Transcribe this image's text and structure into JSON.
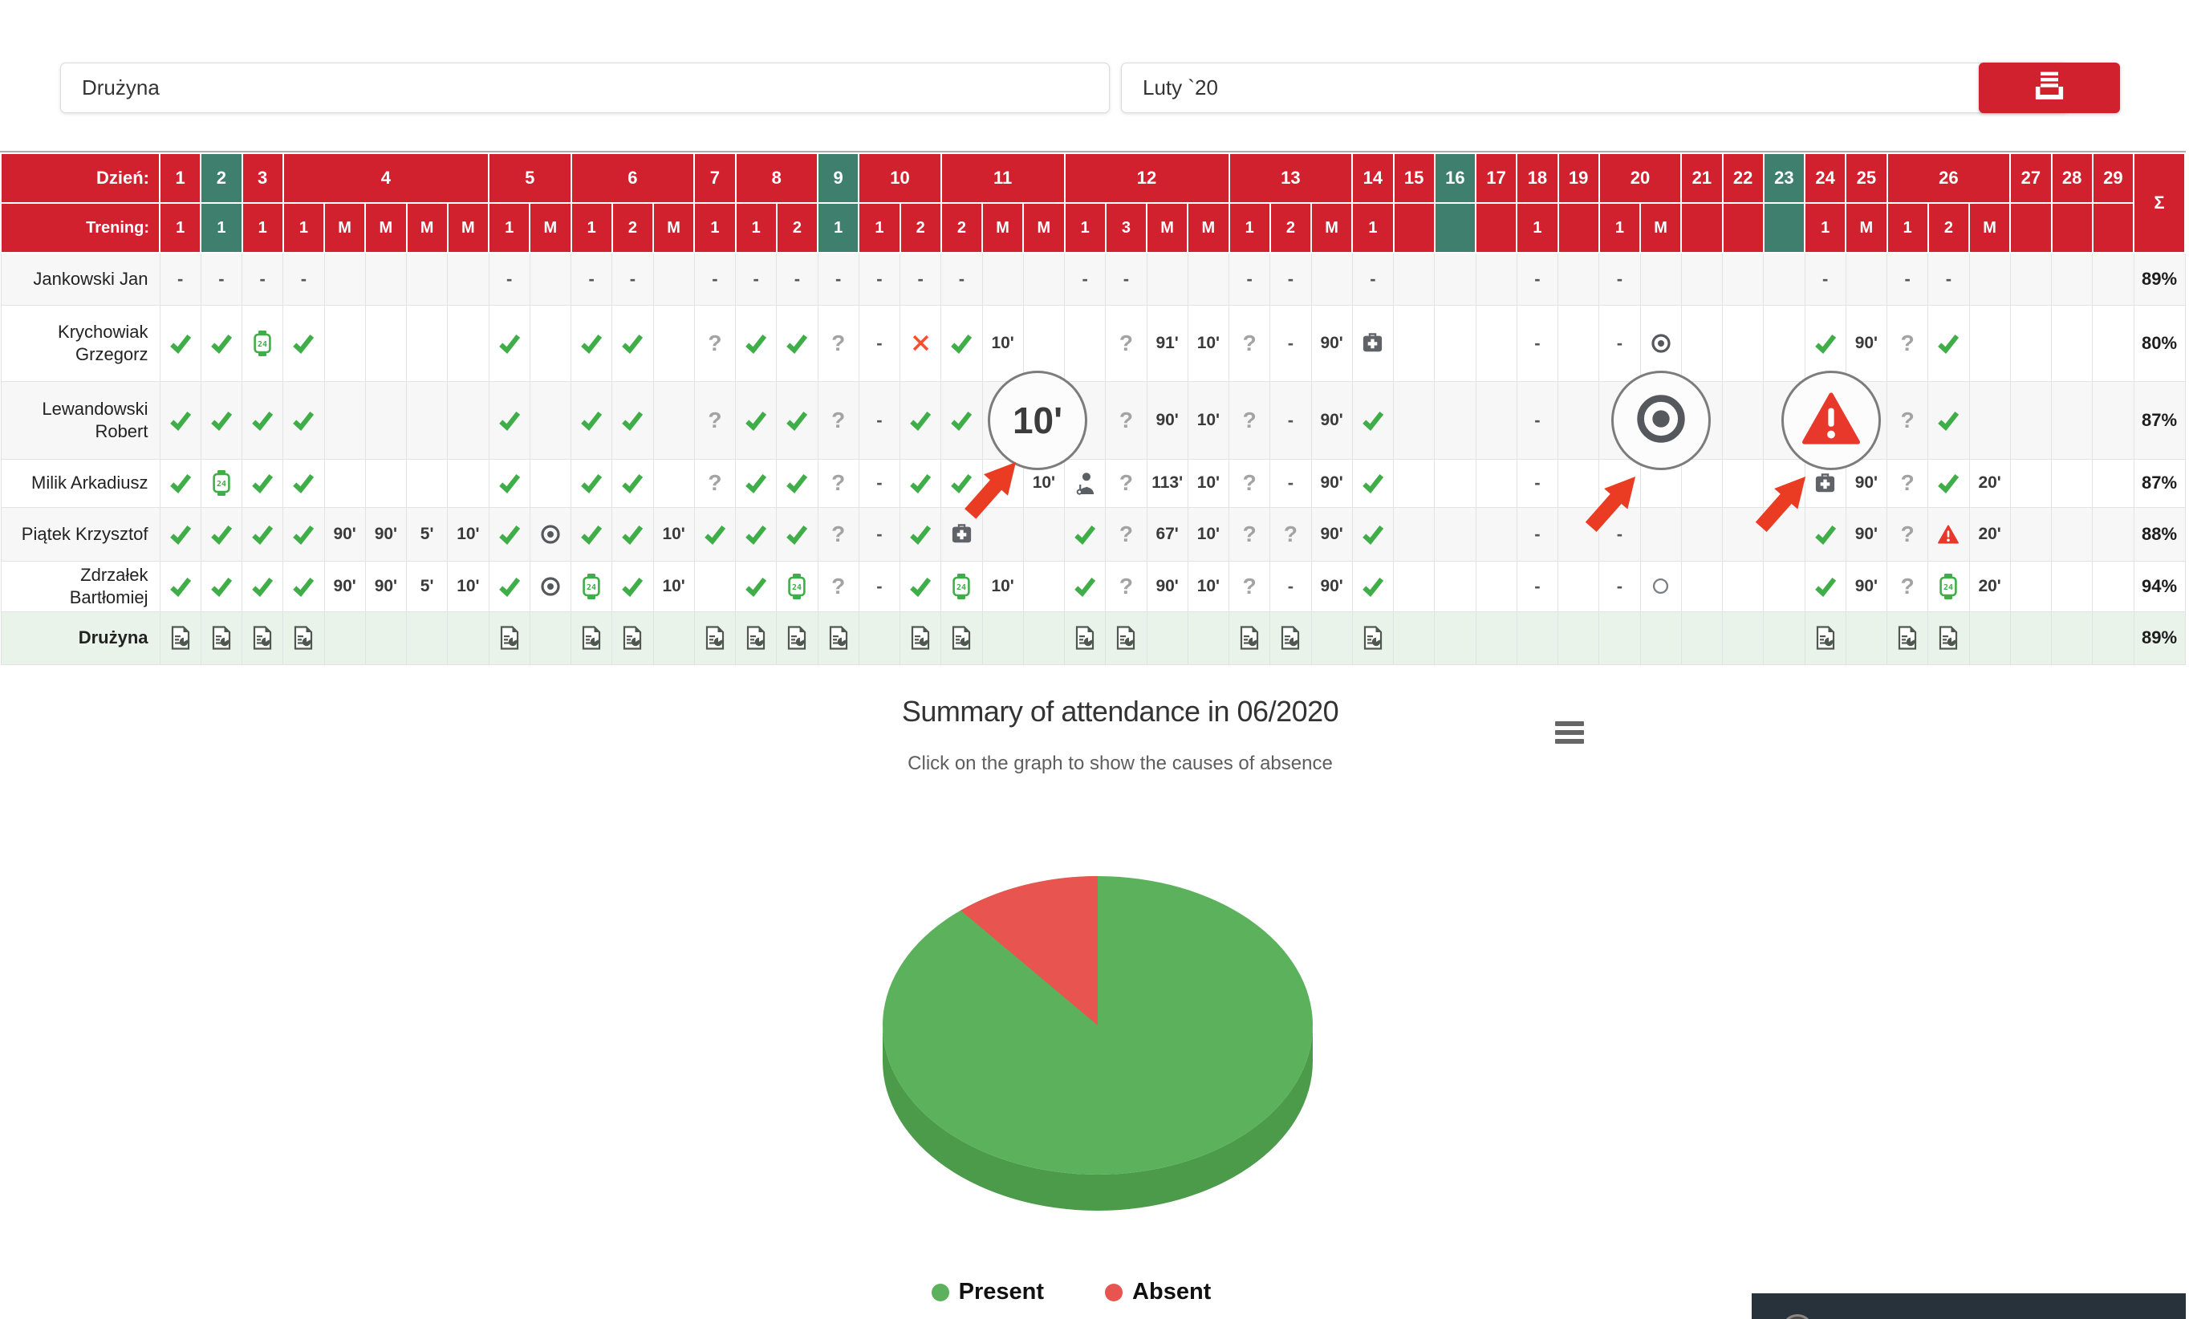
{
  "toolbar": {
    "team_value": "Drużyna",
    "month_value": "Luty `20",
    "print_icon": "printer-icon"
  },
  "table": {
    "day_label": "Dzień:",
    "trening_label": "Trening:",
    "sum_label": "Σ",
    "days": [
      {
        "label": "1",
        "teal": false,
        "trenings": [
          "1"
        ]
      },
      {
        "label": "2",
        "teal": true,
        "trenings": [
          "1"
        ]
      },
      {
        "label": "3",
        "teal": false,
        "trenings": [
          "1"
        ]
      },
      {
        "label": "4",
        "teal": false,
        "trenings": [
          "1",
          "M",
          "M",
          "M",
          "M"
        ]
      },
      {
        "label": "5",
        "teal": false,
        "trenings": [
          "1",
          "M"
        ]
      },
      {
        "label": "6",
        "teal": false,
        "trenings": [
          "1",
          "2",
          "M"
        ]
      },
      {
        "label": "7",
        "teal": false,
        "trenings": [
          "1"
        ]
      },
      {
        "label": "8",
        "teal": false,
        "trenings": [
          "1",
          "2"
        ]
      },
      {
        "label": "9",
        "teal": true,
        "trenings": [
          "1"
        ]
      },
      {
        "label": "10",
        "teal": false,
        "trenings": [
          "1",
          "2"
        ]
      },
      {
        "label": "11",
        "teal": false,
        "trenings": [
          "2",
          "M",
          "M"
        ]
      },
      {
        "label": "12",
        "teal": false,
        "trenings": [
          "1",
          "3",
          "M",
          "M"
        ]
      },
      {
        "label": "13",
        "teal": false,
        "trenings": [
          "1",
          "2",
          "M"
        ]
      },
      {
        "label": "14",
        "teal": false,
        "trenings": [
          "1"
        ]
      },
      {
        "label": "15",
        "teal": false,
        "trenings": [
          ""
        ]
      },
      {
        "label": "16",
        "teal": true,
        "trenings": [
          ""
        ]
      },
      {
        "label": "17",
        "teal": false,
        "trenings": [
          ""
        ]
      },
      {
        "label": "18",
        "teal": false,
        "trenings": [
          "1"
        ]
      },
      {
        "label": "19",
        "teal": false,
        "trenings": [
          ""
        ]
      },
      {
        "label": "20",
        "teal": false,
        "trenings": [
          "1",
          "M"
        ]
      },
      {
        "label": "21",
        "teal": false,
        "trenings": [
          ""
        ]
      },
      {
        "label": "22",
        "teal": false,
        "trenings": [
          ""
        ]
      },
      {
        "label": "23",
        "teal": true,
        "trenings": [
          ""
        ]
      },
      {
        "label": "24",
        "teal": false,
        "trenings": [
          "1"
        ]
      },
      {
        "label": "25",
        "teal": false,
        "trenings": [
          "M"
        ]
      },
      {
        "label": "26",
        "teal": false,
        "trenings": [
          "1",
          "2",
          "M"
        ]
      },
      {
        "label": "27",
        "teal": false,
        "trenings": [
          ""
        ]
      },
      {
        "label": "28",
        "teal": false,
        "trenings": [
          ""
        ]
      },
      {
        "label": "29",
        "teal": false,
        "trenings": [
          ""
        ]
      }
    ],
    "rows": [
      {
        "name": "Jankowski Jan",
        "team": false,
        "total": "89%",
        "cells": [
          "-",
          "-",
          "-",
          "-",
          "",
          "",
          "",
          "",
          "-",
          "",
          "-",
          "-",
          "",
          "-",
          "-",
          "-",
          "-",
          "-",
          "-",
          "-",
          "",
          "",
          "-",
          "-",
          "",
          "",
          "-",
          "-",
          "",
          "-",
          "",
          "",
          "",
          "-",
          "",
          "-",
          "",
          "",
          "",
          "",
          "-",
          "",
          "-",
          "-",
          "",
          "",
          "",
          ""
        ]
      },
      {
        "name": "Krychowiak Grzegorz",
        "team": false,
        "total": "80%",
        "cells": [
          "check",
          "check",
          "watch",
          "check",
          "",
          "",
          "",
          "",
          "check",
          "",
          "check",
          "check",
          "",
          "q",
          "check",
          "check",
          "q",
          "-",
          "x",
          "check",
          "10'",
          "",
          "",
          "q",
          "91'",
          "10'",
          "q",
          "-",
          "90'",
          "medkit",
          "",
          "",
          "",
          "-",
          "",
          "-",
          "target",
          "",
          "",
          "",
          "check",
          "90'",
          "q",
          "check",
          "",
          "",
          "",
          ""
        ]
      },
      {
        "name": "Lewandowski Robert",
        "team": false,
        "total": "87%",
        "cells": [
          "check",
          "check",
          "check",
          "check",
          "",
          "",
          "",
          "",
          "check",
          "",
          "check",
          "check",
          "",
          "q",
          "check",
          "check",
          "q",
          "-",
          "check",
          "check",
          "10'",
          "",
          "",
          "q",
          "90'",
          "10'",
          "q",
          "-",
          "90'",
          "check",
          "",
          "",
          "",
          "-",
          "",
          "",
          "target",
          "",
          "",
          "",
          "warn",
          "90'",
          "q",
          "check",
          "",
          "",
          "",
          ""
        ]
      },
      {
        "name": "Milik Arkadiusz",
        "team": false,
        "total": "87%",
        "cells": [
          "check",
          "watch",
          "check",
          "check",
          "",
          "",
          "",
          "",
          "check",
          "",
          "check",
          "check",
          "",
          "q",
          "check",
          "check",
          "q",
          "-",
          "check",
          "check",
          "",
          "10'",
          "doctor",
          "q",
          "113'",
          "10'",
          "q",
          "-",
          "90'",
          "check",
          "",
          "",
          "",
          "-",
          "",
          "",
          "",
          "",
          "",
          "",
          "medkit",
          "90'",
          "q",
          "check",
          "20'",
          "",
          "",
          ""
        ]
      },
      {
        "name": "Piątek Krzysztof",
        "team": false,
        "total": "88%",
        "cells": [
          "check",
          "check",
          "check",
          "check",
          "90'",
          "90'",
          "5'",
          "10'",
          "check",
          "target",
          "check",
          "check",
          "10'",
          "check",
          "check",
          "check",
          "q",
          "-",
          "check",
          "medkit",
          "",
          "",
          "check",
          "q",
          "67'",
          "10'",
          "q",
          "q",
          "90'",
          "check",
          "",
          "",
          "",
          "-",
          "",
          "-",
          "",
          "",
          "",
          "",
          "check",
          "90'",
          "q",
          "warn",
          "20'",
          "",
          "",
          ""
        ]
      },
      {
        "name": "Zdrzałek Bartłomiej",
        "team": false,
        "total": "94%",
        "cells": [
          "check",
          "check",
          "check",
          "check",
          "90'",
          "90'",
          "5'",
          "10'",
          "check",
          "target",
          "watch",
          "check",
          "10'",
          "",
          "check",
          "watch",
          "q",
          "-",
          "check",
          "watch",
          "10'",
          "",
          "check",
          "q",
          "90'",
          "10'",
          "q",
          "-",
          "90'",
          "check",
          "",
          "",
          "",
          "-",
          "",
          "-",
          "ring",
          "",
          "",
          "",
          "check",
          "90'",
          "q",
          "watch",
          "20'",
          "",
          "",
          ""
        ]
      },
      {
        "name": "Drużyna",
        "team": true,
        "total": "89%",
        "cells": [
          "rep",
          "rep",
          "rep",
          "rep",
          "",
          "",
          "",
          "",
          "rep",
          "",
          "rep",
          "rep",
          "",
          "rep",
          "rep",
          "rep",
          "rep",
          "",
          "rep",
          "rep",
          "",
          "",
          "rep",
          "rep",
          "",
          "",
          "rep",
          "rep",
          "",
          "rep",
          "",
          "",
          "",
          "",
          "",
          "",
          "",
          "",
          "",
          "",
          "rep",
          "",
          "rep",
          "rep",
          "",
          "",
          "",
          ""
        ]
      }
    ]
  },
  "overlays": {
    "magnifier_minutes": "10'",
    "magnifier_target": "target-icon",
    "magnifier_warning": "warning-icon"
  },
  "chart": {
    "title": "Summary of attendance in 06/2020",
    "subtitle": "Click on the graph to show the causes of absence",
    "menu_icon": "hamburger-icon"
  },
  "chart_data": {
    "type": "pie",
    "title": "Summary of attendance in 06/2020",
    "subtitle": "Click on the graph to show the causes of absence",
    "labels": [
      "Present",
      "Absent"
    ],
    "values": [
      89,
      11
    ],
    "legend": [
      "Present",
      "Absent"
    ],
    "legend_position": "bottom",
    "colors": {
      "present": "#5cb15c",
      "present_side": "#4b9b4b",
      "absent": "#e85450"
    },
    "style": "3d"
  },
  "colors": {
    "header_red": "#d2212e",
    "weekend_teal": "#3e7f6e",
    "check_green": "#3fae49",
    "absent_x_orange": "#f4502e",
    "warn_red": "#e8382c",
    "arrow_red": "#ea3c22",
    "team_row_green": "#e9f3e9"
  }
}
